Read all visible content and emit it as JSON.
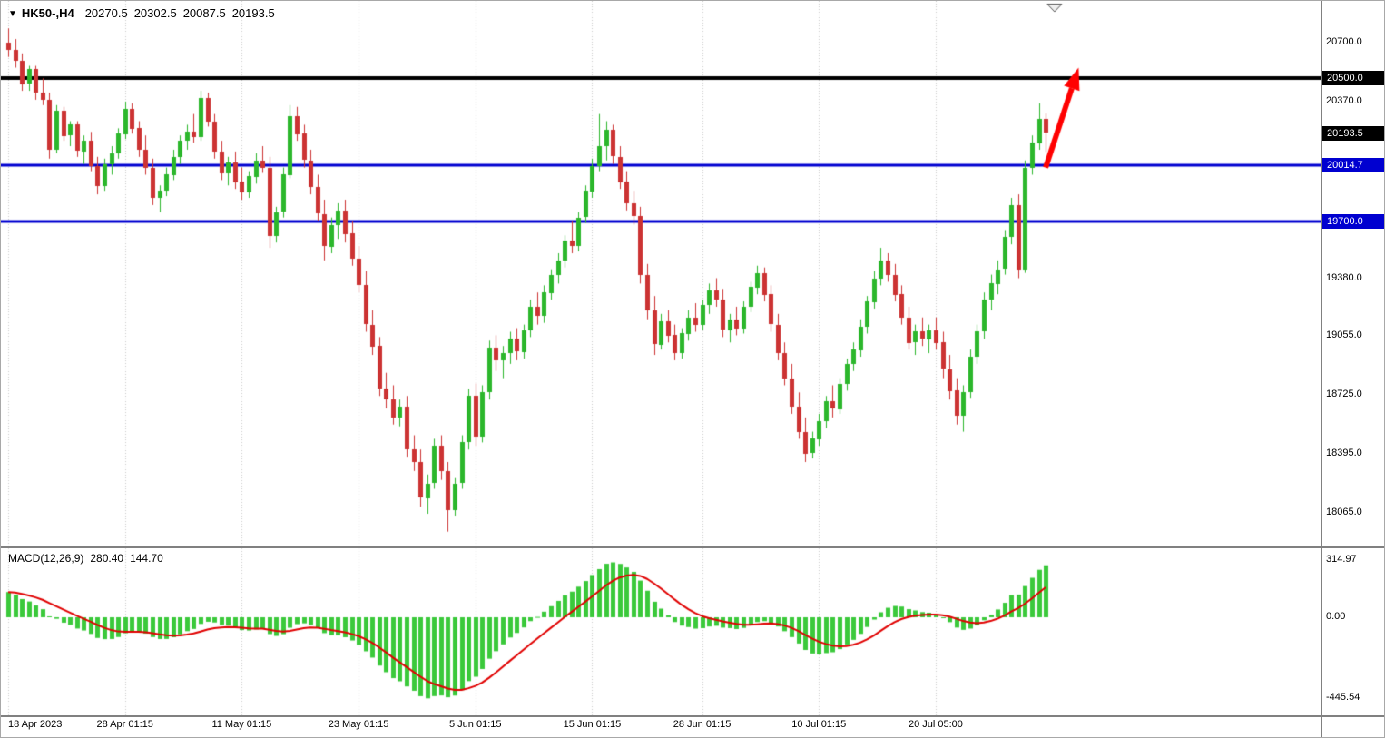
{
  "title": {
    "marker_glyph": "▼",
    "symbol": "HK50-,H4",
    "open": "20270.5",
    "high": "20302.5",
    "low": "20087.5",
    "close": "20193.5"
  },
  "macd": {
    "label": "MACD(12,26,9)",
    "main_value": "280.40",
    "signal_value": "144.70",
    "axis_labels": [
      {
        "value": 314.97,
        "text": "314.97"
      },
      {
        "value": 0,
        "text": "0.00"
      },
      {
        "value": -445.54,
        "text": "-445.54"
      }
    ]
  },
  "price_axis": {
    "plain_labels": [
      {
        "price": 20700.0,
        "text": "20700.0"
      },
      {
        "price": 20370.0,
        "text": "20370.0"
      },
      {
        "price": 19380.0,
        "text": "19380.0"
      },
      {
        "price": 19055.0,
        "text": "19055.0"
      },
      {
        "price": 18725.0,
        "text": "18725.0"
      },
      {
        "price": 18395.0,
        "text": "18395.0"
      },
      {
        "price": 18065.0,
        "text": "18065.0"
      }
    ],
    "badges": [
      {
        "price": 20500.0,
        "text": "20500.0",
        "bg": "#000000"
      },
      {
        "price": 20193.5,
        "text": "20193.5",
        "bg": "#000000"
      },
      {
        "price": 20014.7,
        "text": "20014.7",
        "bg": "#0000d0"
      },
      {
        "price": 19700.0,
        "text": "19700.0",
        "bg": "#0000d0"
      }
    ]
  },
  "hlines": [
    {
      "price": 20500.0,
      "color": "#000000",
      "width": 4
    },
    {
      "price": 20014.7,
      "color": "#0000d0",
      "width": 3
    },
    {
      "price": 19700.0,
      "color": "#0000d0",
      "width": 3
    }
  ],
  "time_axis": [
    {
      "text": "18 Apr 2023",
      "bar": 0
    },
    {
      "text": "28 Apr 01:15",
      "bar": 17
    },
    {
      "text": "11 May 01:15",
      "bar": 34
    },
    {
      "text": "23 May 01:15",
      "bar": 51
    },
    {
      "text": "5 Jun 01:15",
      "bar": 68
    },
    {
      "text": "15 Jun 01:15",
      "bar": 85
    },
    {
      "text": "28 Jun 01:15",
      "bar": 101
    },
    {
      "text": "10 Jul 01:15",
      "bar": 118
    },
    {
      "text": "20 Jul 05:00",
      "bar": 135
    }
  ],
  "chart_data": {
    "type": "candlestick+macd",
    "symbol": "HK50-",
    "timeframe": "H4",
    "last_ohlc": {
      "open": 20270.5,
      "high": 20302.5,
      "low": 20087.5,
      "close": 20193.5
    },
    "price_ylim": [
      17900,
      20820
    ],
    "macd_params": [
      12,
      26,
      9
    ],
    "macd_last": {
      "main": 280.4,
      "signal": 144.7
    },
    "macd_ylim": [
      -445.54,
      314.97
    ],
    "support_resistance": [
      20500.0,
      20014.7,
      19700.0
    ],
    "shift_marker_bar": 152.3,
    "colors": {
      "up": "#2cb72c",
      "down": "#cc3333",
      "macd_hist": "#3bc93b",
      "macd_signal": "#e00000",
      "grid": "#c9c9c9",
      "arrow": "#ff0000"
    },
    "annotations": [
      {
        "type": "arrow",
        "from": {
          "bar": 151,
          "price": 20000
        },
        "to": {
          "bar": 155.8,
          "price": 20560
        },
        "color": "#ff0000"
      }
    ],
    "candles": [
      [
        20700,
        20780,
        20620,
        20660
      ],
      [
        20660,
        20720,
        20560,
        20600
      ],
      [
        20600,
        20640,
        20430,
        20470
      ],
      [
        20470,
        20570,
        20430,
        20550
      ],
      [
        20550,
        20570,
        20380,
        20420
      ],
      [
        20420,
        20500,
        20350,
        20380
      ],
      [
        20380,
        20420,
        20050,
        20100
      ],
      [
        20100,
        20350,
        20080,
        20320
      ],
      [
        20320,
        20340,
        20150,
        20180
      ],
      [
        20180,
        20260,
        20120,
        20240
      ],
      [
        20240,
        20260,
        20060,
        20090
      ],
      [
        20090,
        20180,
        20020,
        20150
      ],
      [
        20150,
        20200,
        19980,
        20010
      ],
      [
        20010,
        20060,
        19850,
        19900
      ],
      [
        19900,
        20050,
        19870,
        20020
      ],
      [
        20020,
        20120,
        19960,
        20080
      ],
      [
        20080,
        20220,
        20050,
        20190
      ],
      [
        20190,
        20370,
        20160,
        20330
      ],
      [
        20330,
        20360,
        20190,
        20220
      ],
      [
        20220,
        20260,
        20060,
        20100
      ],
      [
        20100,
        20180,
        19960,
        20000
      ],
      [
        20000,
        20050,
        19790,
        19830
      ],
      [
        19830,
        19900,
        19750,
        19870
      ],
      [
        19870,
        20000,
        19840,
        19960
      ],
      [
        19960,
        20100,
        19930,
        20060
      ],
      [
        20060,
        20180,
        20020,
        20150
      ],
      [
        20150,
        20240,
        20100,
        20200
      ],
      [
        20200,
        20300,
        20140,
        20170
      ],
      [
        20170,
        20430,
        20150,
        20390
      ],
      [
        20390,
        20420,
        20230,
        20260
      ],
      [
        20260,
        20300,
        20050,
        20090
      ],
      [
        20090,
        20150,
        19930,
        19970
      ],
      [
        19970,
        20060,
        19900,
        20030
      ],
      [
        20030,
        20090,
        19880,
        19920
      ],
      [
        19920,
        20000,
        19820,
        19860
      ],
      [
        19860,
        19980,
        19830,
        19950
      ],
      [
        19950,
        20080,
        19910,
        20040
      ],
      [
        20040,
        20120,
        19970,
        20000
      ],
      [
        20000,
        20060,
        19550,
        19620
      ],
      [
        19620,
        19780,
        19580,
        19750
      ],
      [
        19750,
        20000,
        19720,
        19960
      ],
      [
        19960,
        20350,
        19940,
        20290
      ],
      [
        20290,
        20340,
        20150,
        20190
      ],
      [
        20190,
        20240,
        20000,
        20040
      ],
      [
        20040,
        20100,
        19850,
        19890
      ],
      [
        19890,
        19960,
        19700,
        19740
      ],
      [
        19740,
        19820,
        19480,
        19560
      ],
      [
        19560,
        19720,
        19520,
        19680
      ],
      [
        19680,
        19800,
        19600,
        19760
      ],
      [
        19760,
        19820,
        19580,
        19630
      ],
      [
        19630,
        19700,
        19450,
        19490
      ],
      [
        19490,
        19560,
        19300,
        19340
      ],
      [
        19340,
        19420,
        19080,
        19120
      ],
      [
        19120,
        19200,
        18950,
        19000
      ],
      [
        19000,
        19050,
        18720,
        18760
      ],
      [
        18760,
        18850,
        18650,
        18700
      ],
      [
        18700,
        18780,
        18560,
        18600
      ],
      [
        18600,
        18700,
        18550,
        18660
      ],
      [
        18660,
        18720,
        18380,
        18420
      ],
      [
        18420,
        18500,
        18300,
        18350
      ],
      [
        18350,
        18420,
        18100,
        18150
      ],
      [
        18150,
        18280,
        18060,
        18230
      ],
      [
        18230,
        18480,
        18200,
        18440
      ],
      [
        18440,
        18500,
        18250,
        18300
      ],
      [
        18300,
        18350,
        17960,
        18080
      ],
      [
        18080,
        18260,
        18050,
        18230
      ],
      [
        18230,
        18500,
        18200,
        18460
      ],
      [
        18460,
        18760,
        18420,
        18720
      ],
      [
        18720,
        18790,
        18440,
        18490
      ],
      [
        18490,
        18780,
        18460,
        18740
      ],
      [
        18740,
        19030,
        18700,
        18990
      ],
      [
        18990,
        19060,
        18860,
        18920
      ],
      [
        18920,
        19000,
        18820,
        18960
      ],
      [
        18960,
        19080,
        18900,
        19040
      ],
      [
        19040,
        19100,
        18920,
        18970
      ],
      [
        18970,
        19120,
        18930,
        19090
      ],
      [
        19090,
        19260,
        19050,
        19220
      ],
      [
        19220,
        19300,
        19120,
        19170
      ],
      [
        19170,
        19340,
        19130,
        19300
      ],
      [
        19300,
        19430,
        19260,
        19400
      ],
      [
        19400,
        19520,
        19350,
        19480
      ],
      [
        19480,
        19620,
        19440,
        19590
      ],
      [
        19590,
        19700,
        19520,
        19560
      ],
      [
        19560,
        19750,
        19530,
        19720
      ],
      [
        19720,
        19900,
        19690,
        19870
      ],
      [
        19870,
        20050,
        19830,
        20010
      ],
      [
        20010,
        20300,
        19980,
        20120
      ],
      [
        20120,
        20260,
        20040,
        20210
      ],
      [
        20210,
        20240,
        20020,
        20060
      ],
      [
        20060,
        20120,
        19880,
        19920
      ],
      [
        19920,
        19980,
        19760,
        19800
      ],
      [
        19800,
        19870,
        19680,
        19730
      ],
      [
        19730,
        19780,
        19350,
        19400
      ],
      [
        19400,
        19460,
        19150,
        19200
      ],
      [
        19200,
        19280,
        18950,
        19010
      ],
      [
        19010,
        19180,
        18980,
        19140
      ],
      [
        19140,
        19200,
        19020,
        19060
      ],
      [
        19060,
        19120,
        18920,
        18960
      ],
      [
        18960,
        19100,
        18930,
        19070
      ],
      [
        19070,
        19200,
        19030,
        19160
      ],
      [
        19160,
        19240,
        19080,
        19120
      ],
      [
        19120,
        19260,
        19090,
        19230
      ],
      [
        19230,
        19350,
        19180,
        19310
      ],
      [
        19310,
        19380,
        19220,
        19260
      ],
      [
        19260,
        19320,
        19050,
        19090
      ],
      [
        19090,
        19180,
        19020,
        19150
      ],
      [
        19150,
        19220,
        19060,
        19100
      ],
      [
        19100,
        19250,
        19070,
        19220
      ],
      [
        19220,
        19360,
        19190,
        19330
      ],
      [
        19330,
        19450,
        19290,
        19410
      ],
      [
        19410,
        19440,
        19250,
        19290
      ],
      [
        19290,
        19340,
        19080,
        19120
      ],
      [
        19120,
        19180,
        18920,
        18960
      ],
      [
        18960,
        19020,
        18780,
        18820
      ],
      [
        18820,
        18900,
        18620,
        18660
      ],
      [
        18660,
        18740,
        18480,
        18520
      ],
      [
        18520,
        18600,
        18350,
        18400
      ],
      [
        18400,
        18520,
        18370,
        18480
      ],
      [
        18480,
        18620,
        18440,
        18580
      ],
      [
        18580,
        18720,
        18540,
        18690
      ],
      [
        18690,
        18780,
        18600,
        18650
      ],
      [
        18650,
        18820,
        18620,
        18790
      ],
      [
        18790,
        18930,
        18750,
        18900
      ],
      [
        18900,
        19020,
        18860,
        18980
      ],
      [
        18980,
        19150,
        18940,
        19110
      ],
      [
        19110,
        19280,
        19070,
        19250
      ],
      [
        19250,
        19420,
        19210,
        19380
      ],
      [
        19380,
        19550,
        19340,
        19480
      ],
      [
        19480,
        19520,
        19360,
        19400
      ],
      [
        19400,
        19460,
        19250,
        19290
      ],
      [
        19290,
        19340,
        19120,
        19160
      ],
      [
        19160,
        19220,
        18980,
        19020
      ],
      [
        19020,
        19120,
        18950,
        19080
      ],
      [
        19080,
        19160,
        19000,
        19040
      ],
      [
        19040,
        19120,
        18960,
        19090
      ],
      [
        19090,
        19160,
        18980,
        19020
      ],
      [
        19020,
        19080,
        18820,
        18870
      ],
      [
        18870,
        18950,
        18700,
        18750
      ],
      [
        18750,
        18820,
        18560,
        18610
      ],
      [
        18610,
        18780,
        18520,
        18740
      ],
      [
        18740,
        18980,
        18710,
        18940
      ],
      [
        18940,
        19120,
        18900,
        19080
      ],
      [
        19080,
        19300,
        19040,
        19260
      ],
      [
        19260,
        19400,
        19200,
        19350
      ],
      [
        19350,
        19480,
        19290,
        19430
      ],
      [
        19430,
        19650,
        19400,
        19610
      ],
      [
        19610,
        19830,
        19570,
        19790
      ],
      [
        19790,
        19850,
        19380,
        19430
      ],
      [
        19430,
        20040,
        19410,
        20000
      ],
      [
        20000,
        20180,
        19960,
        20140
      ],
      [
        20140,
        20360,
        20100,
        20275
      ],
      [
        20270.5,
        20302.5,
        20087.5,
        20193.5
      ]
    ]
  }
}
